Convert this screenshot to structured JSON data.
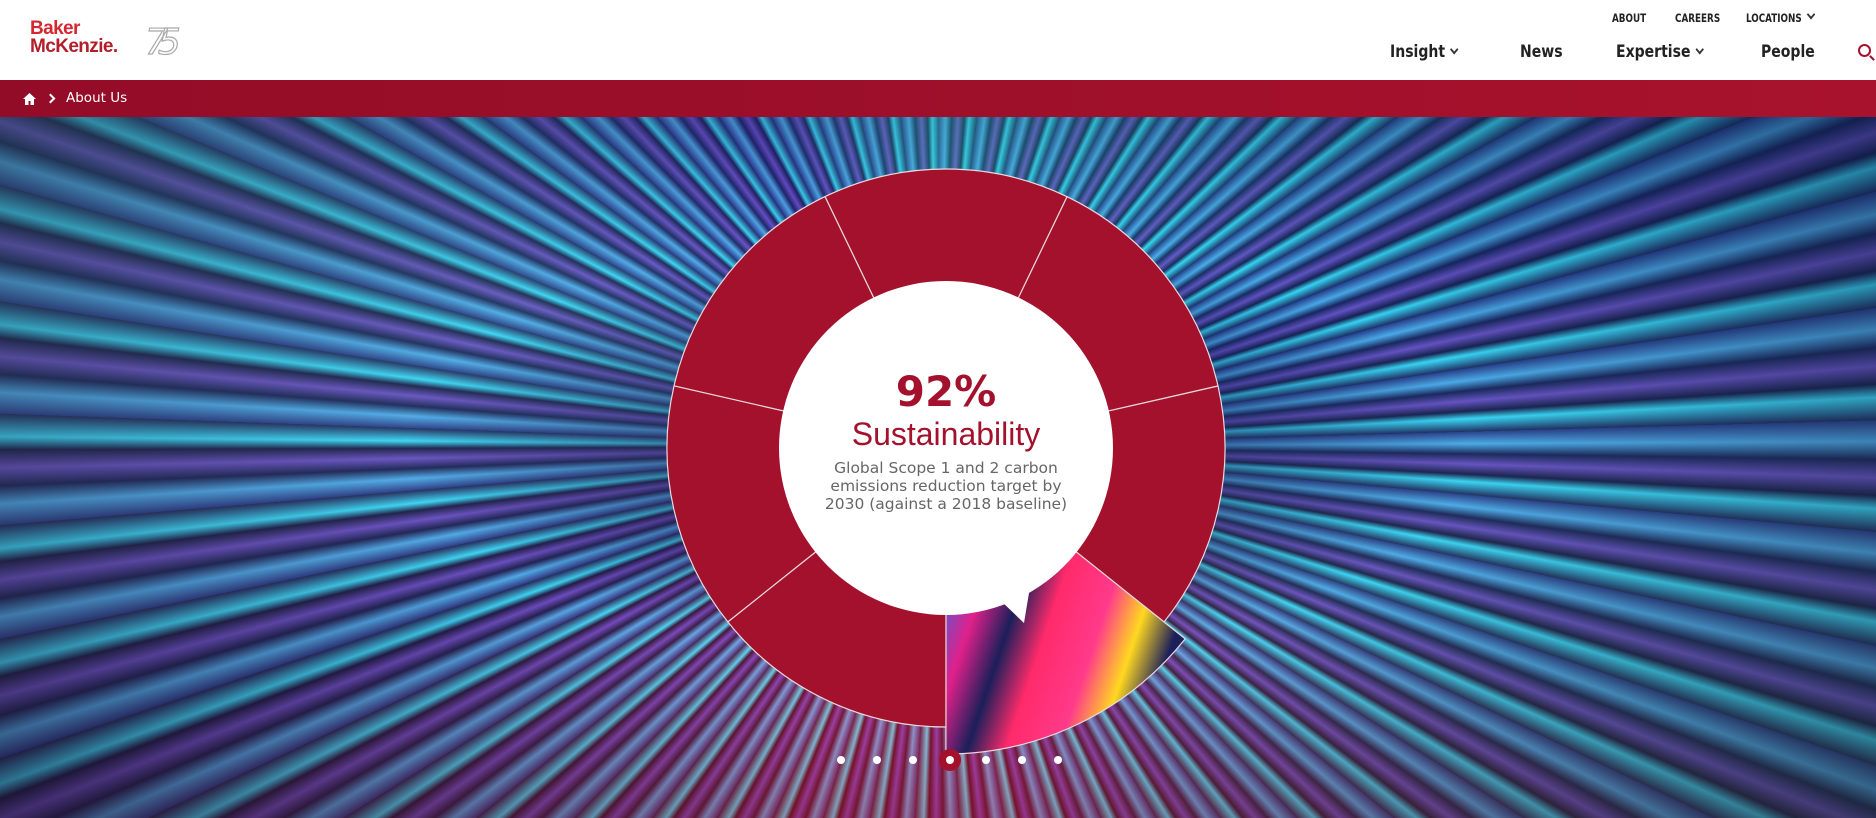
{
  "brand": {
    "line1": "Baker",
    "line2": "McKenzie.",
    "anniversary": "75",
    "color": "#d7262f"
  },
  "top_nav": {
    "about": "ABOUT",
    "careers": "CAREERS",
    "locations": "LOCATIONS"
  },
  "main_nav": {
    "insight": "Insight",
    "news": "News",
    "expertise": "Expertise",
    "people": "People"
  },
  "breadcrumb": {
    "current": "About Us"
  },
  "slide": {
    "value": "92%",
    "title": "Sustainability",
    "description": "Global Scope 1 and 2 carbon emissions reduction target by 2030 (against a 2018 baseline)"
  },
  "carousel": {
    "count": 7,
    "active": 4
  },
  "colors": {
    "accent": "#a3112c"
  }
}
